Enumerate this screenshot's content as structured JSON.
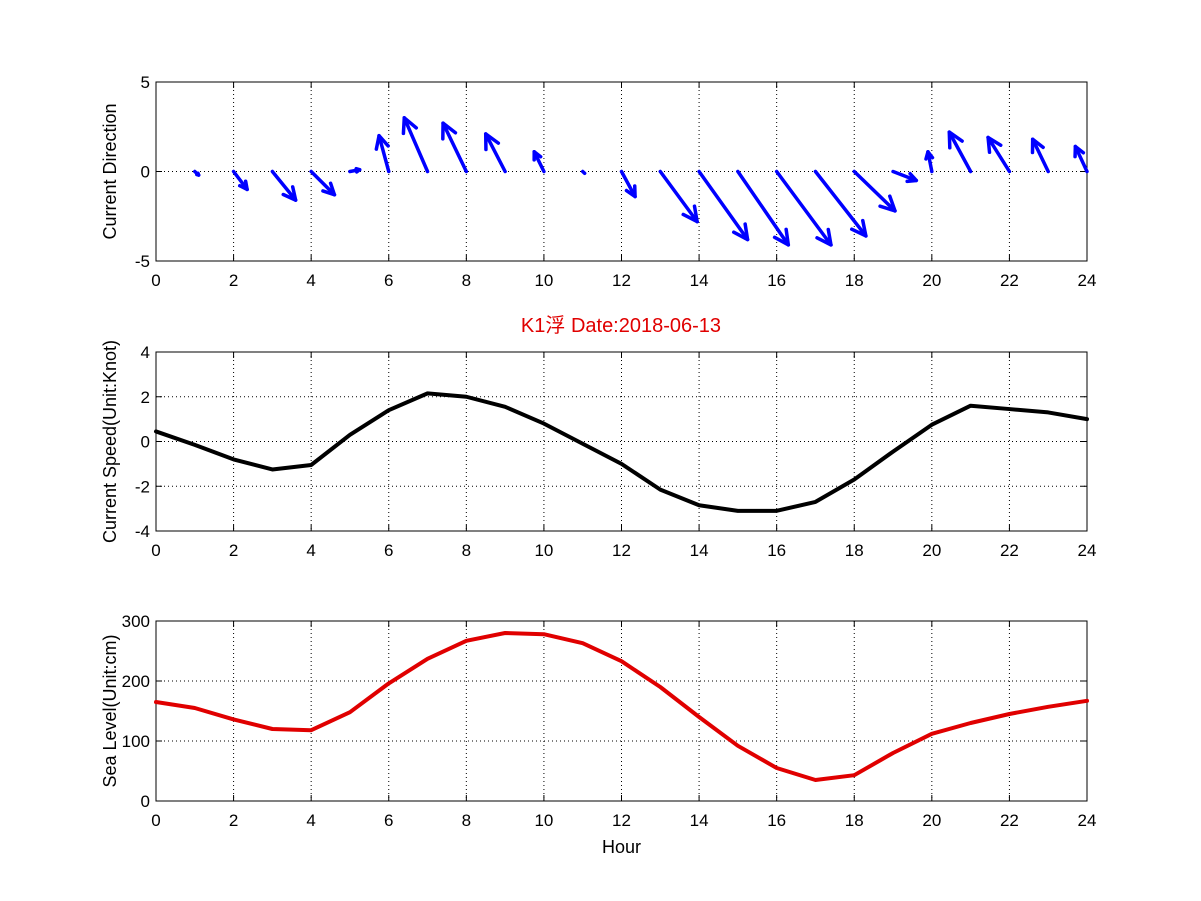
{
  "figure": {
    "title": "K1浮    Date:2018-06-13",
    "title_color": "#e00000"
  },
  "chart_data": [
    {
      "type": "quiver",
      "ylabel": "Current Direction",
      "xlabel": "",
      "xlim": [
        0,
        24
      ],
      "ylim": [
        -5,
        5
      ],
      "xticks": [
        0,
        2,
        4,
        6,
        8,
        10,
        12,
        14,
        16,
        18,
        20,
        22,
        24
      ],
      "yticks": [
        -5,
        0,
        5
      ],
      "grid": true,
      "color": "#0000ff",
      "vectors": [
        {
          "x": 1,
          "u": 0.1,
          "v": -0.2
        },
        {
          "x": 2,
          "u": 0.35,
          "v": -1.0
        },
        {
          "x": 3,
          "u": 0.6,
          "v": -1.6
        },
        {
          "x": 4,
          "u": 0.6,
          "v": -1.3
        },
        {
          "x": 5,
          "u": 0.25,
          "v": 0.1
        },
        {
          "x": 6,
          "u": -0.25,
          "v": 2.0
        },
        {
          "x": 7,
          "u": -0.6,
          "v": 3.0
        },
        {
          "x": 8,
          "u": -0.6,
          "v": 2.7
        },
        {
          "x": 9,
          "u": -0.5,
          "v": 2.1
        },
        {
          "x": 10,
          "u": -0.25,
          "v": 1.1
        },
        {
          "x": 11,
          "u": 0.05,
          "v": -0.1
        },
        {
          "x": 12,
          "u": 0.35,
          "v": -1.4
        },
        {
          "x": 13,
          "u": 0.95,
          "v": -2.8
        },
        {
          "x": 14,
          "u": 1.25,
          "v": -3.8
        },
        {
          "x": 15,
          "u": 1.3,
          "v": -4.1
        },
        {
          "x": 16,
          "u": 1.4,
          "v": -4.1
        },
        {
          "x": 17,
          "u": 1.3,
          "v": -3.6
        },
        {
          "x": 18,
          "u": 1.05,
          "v": -2.2
        },
        {
          "x": 19,
          "u": 0.6,
          "v": -0.5
        },
        {
          "x": 20,
          "u": -0.1,
          "v": 1.1
        },
        {
          "x": 21,
          "u": -0.55,
          "v": 2.2
        },
        {
          "x": 22,
          "u": -0.55,
          "v": 1.9
        },
        {
          "x": 23,
          "u": -0.4,
          "v": 1.8
        },
        {
          "x": 24,
          "u": -0.3,
          "v": 1.4
        }
      ]
    },
    {
      "type": "line",
      "ylabel": "Current Speed(Unit:Knot)",
      "xlabel": "",
      "xlim": [
        0,
        24
      ],
      "ylim": [
        -4,
        4
      ],
      "xticks": [
        0,
        2,
        4,
        6,
        8,
        10,
        12,
        14,
        16,
        18,
        20,
        22,
        24
      ],
      "yticks": [
        -4,
        -2,
        0,
        2,
        4
      ],
      "grid": true,
      "color": "#000000",
      "x": [
        0,
        1,
        2,
        3,
        4,
        5,
        6,
        7,
        8,
        9,
        10,
        11,
        12,
        13,
        14,
        15,
        16,
        17,
        18,
        19,
        20,
        21,
        22,
        23,
        24
      ],
      "y": [
        0.45,
        -0.15,
        -0.8,
        -1.25,
        -1.05,
        0.3,
        1.4,
        2.15,
        2.0,
        1.55,
        0.8,
        -0.1,
        -1.0,
        -2.15,
        -2.85,
        -3.1,
        -3.1,
        -2.7,
        -1.7,
        -0.45,
        0.75,
        1.6,
        1.45,
        1.3,
        1.0
      ]
    },
    {
      "type": "line",
      "ylabel": "Sea Level(Unit:cm)",
      "xlabel": "Hour",
      "xlim": [
        0,
        24
      ],
      "ylim": [
        0,
        300
      ],
      "xticks": [
        0,
        2,
        4,
        6,
        8,
        10,
        12,
        14,
        16,
        18,
        20,
        22,
        24
      ],
      "yticks": [
        0,
        100,
        200,
        300
      ],
      "grid": true,
      "color": "#e00000",
      "x": [
        0,
        1,
        2,
        3,
        4,
        5,
        6,
        7,
        8,
        9,
        10,
        11,
        12,
        13,
        14,
        15,
        16,
        17,
        18,
        19,
        20,
        21,
        22,
        23,
        24
      ],
      "y": [
        165,
        155,
        136,
        120,
        118,
        148,
        196,
        237,
        267,
        280,
        278,
        263,
        233,
        190,
        140,
        92,
        55,
        35,
        43,
        80,
        112,
        130,
        145,
        157,
        167
      ]
    }
  ]
}
